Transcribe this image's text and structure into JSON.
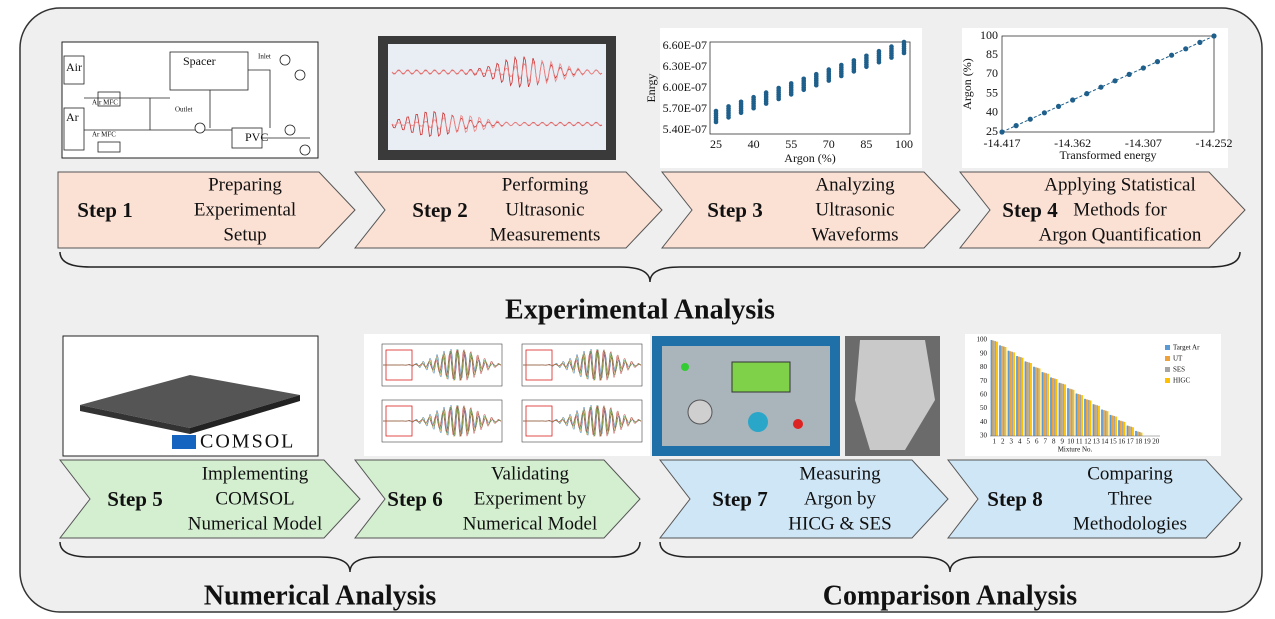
{
  "steps": [
    {
      "label": "Step 1",
      "lines": [
        "Preparing",
        "Experimental",
        "Setup"
      ]
    },
    {
      "label": "Step 2",
      "lines": [
        "Performing",
        "Ultrasonic",
        "Measurements"
      ]
    },
    {
      "label": "Step 3",
      "lines": [
        "Analyzing",
        "Ultrasonic",
        "Waveforms"
      ]
    },
    {
      "label": "Step 4",
      "lines": [
        "Applying Statistical",
        "Methods for",
        "Argon Quantification"
      ]
    },
    {
      "label": "Step 5",
      "lines": [
        "Implementing",
        "COMSOL",
        "Numerical Model"
      ]
    },
    {
      "label": "Step 6",
      "lines": [
        "Validating",
        "Experiment by",
        "Numerical Model"
      ]
    },
    {
      "label": "Step 7",
      "lines": [
        "Measuring",
        "Argon by",
        "HICG & SES"
      ]
    },
    {
      "label": "Step 8",
      "lines": [
        "Comparing",
        "Three",
        "Methodologies"
      ]
    }
  ],
  "sections": [
    "Experimental Analysis",
    "Numerical Analysis",
    "Comparison Analysis"
  ],
  "schematic": {
    "labels": [
      "Air",
      "Air MFC",
      "Spacer",
      "Inlet",
      "Outlet",
      "Ar",
      "Ar MFC",
      "PVC"
    ]
  },
  "energy_plot": {
    "ylabel": "Enrgy",
    "xlabel": "Argon (%)",
    "yticks": [
      "6.60E-07",
      "6.30E-07",
      "6.00E-07",
      "5.70E-07",
      "5.40E-07"
    ],
    "xticks": [
      25,
      40,
      55,
      70,
      85,
      100
    ]
  },
  "argon_plot": {
    "ylabel": "Argon (%)",
    "xlabel": "Transformed energy",
    "yticks": [
      100,
      85,
      70,
      55,
      40,
      25
    ],
    "xticks": [
      "-14.417",
      "-14.362",
      "-14.307",
      "-14.252"
    ]
  },
  "comsol_logo": "COMSOL",
  "bar_plot": {
    "legend": [
      "Target Ar",
      "UT",
      "SES",
      "HIGC"
    ],
    "xlabel": "Mixture No.",
    "xticks": [
      1,
      2,
      3,
      4,
      5,
      6,
      7,
      8,
      9,
      10,
      11,
      12,
      13,
      14,
      15,
      16,
      17,
      18,
      19,
      20
    ],
    "yticks": [
      100,
      90,
      80,
      70,
      60,
      50,
      40,
      30
    ]
  }
}
